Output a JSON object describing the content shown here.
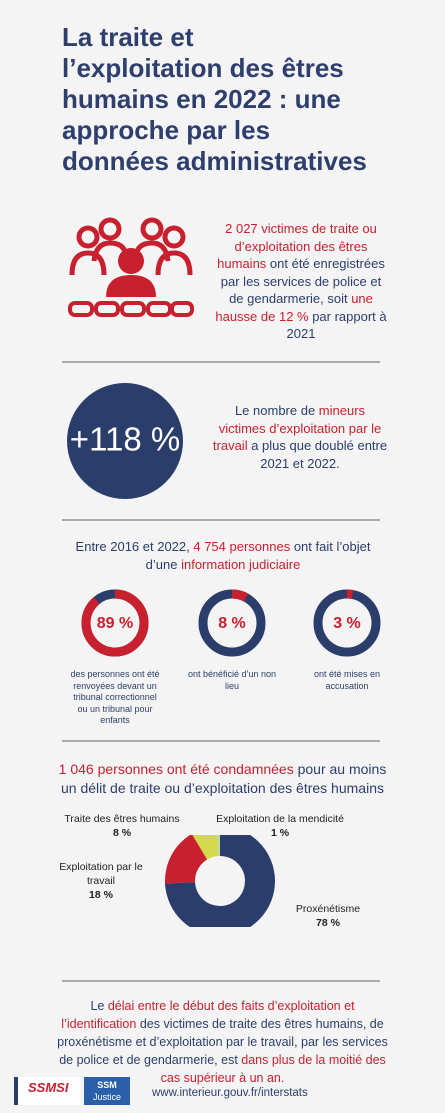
{
  "title_lines": [
    "La traite et",
    "l’exploitation des êtres",
    "humains en 2022 : une",
    "approche par les",
    "données administratives"
  ],
  "victims": {
    "parts": [
      {
        "text": "2 027 victimes de traite ou d’exploitation des êtres humains",
        "em": true
      },
      {
        "text": " ont été enregistrées par les services de police et de gendarmerie, soit ",
        "em": false
      },
      {
        "text": "une hausse de 12 %",
        "em": true
      },
      {
        "text": " par rapport à 2021",
        "em": false
      }
    ]
  },
  "minors": {
    "figure": "+118 %",
    "parts": [
      {
        "text": "Le nombre de ",
        "em": false
      },
      {
        "text": "mineurs victimes d’exploitation par le travail",
        "em": true
      },
      {
        "text": " a plus que doublé entre 2021 et 2022.",
        "em": false
      }
    ]
  },
  "judicial": {
    "parts": [
      {
        "text": "Entre 2016 et 2022, ",
        "em": false
      },
      {
        "text": "4 754 personnes",
        "em": true
      },
      {
        "text": " ont fait l’objet d’une ",
        "em": false
      },
      {
        "text": "information judiciaire",
        "em": true
      }
    ],
    "rings": [
      {
        "value": 89,
        "label": "89 %",
        "caption": "des personnes ont été renvoyées devant un tribunal correctionnel ou un tribunal pour enfants"
      },
      {
        "value": 8,
        "label": "8 %",
        "caption": "ont bénéficié d’un non lieu"
      },
      {
        "value": 3,
        "label": "3 %",
        "caption": "ont été mises en accusation"
      }
    ]
  },
  "convicted": {
    "parts": [
      {
        "text": "1 046 personnes ont été condamnées",
        "em": true
      },
      {
        "text": " pour au moins un délit de traite ou d’exploitation des êtres humains",
        "em": false
      }
    ],
    "slices": [
      {
        "name": "Traite des êtres humains",
        "value": 8,
        "label": "8 %",
        "color": "#d5d84c"
      },
      {
        "name": "Exploitation de la mendicité",
        "value": 1,
        "label": "1 %",
        "color": "#b9dba8"
      },
      {
        "name": "Exploitation par le travail",
        "value": 18,
        "label": "18 %",
        "color": "#c8202f"
      },
      {
        "name": "Proxénétisme",
        "value": 78,
        "label": "78 %",
        "color": "#2b3e6b"
      }
    ]
  },
  "footer": {
    "parts": [
      {
        "text": "Le ",
        "em": false
      },
      {
        "text": "délai entre le début des faits d’exploitation et l’identification",
        "em": true
      },
      {
        "text": " des victimes de traite des êtres humains, de proxénétisme et d’exploitation par le travail, par les services de police et de gendarmerie, est ",
        "em": false
      },
      {
        "text": "dans plus de la moitié des cas supérieur à un an.",
        "em": true
      }
    ],
    "logos": [
      "SSMSI",
      "SSM",
      "Justice"
    ],
    "url": "www.interieur.gouv.fr/interstats"
  }
}
